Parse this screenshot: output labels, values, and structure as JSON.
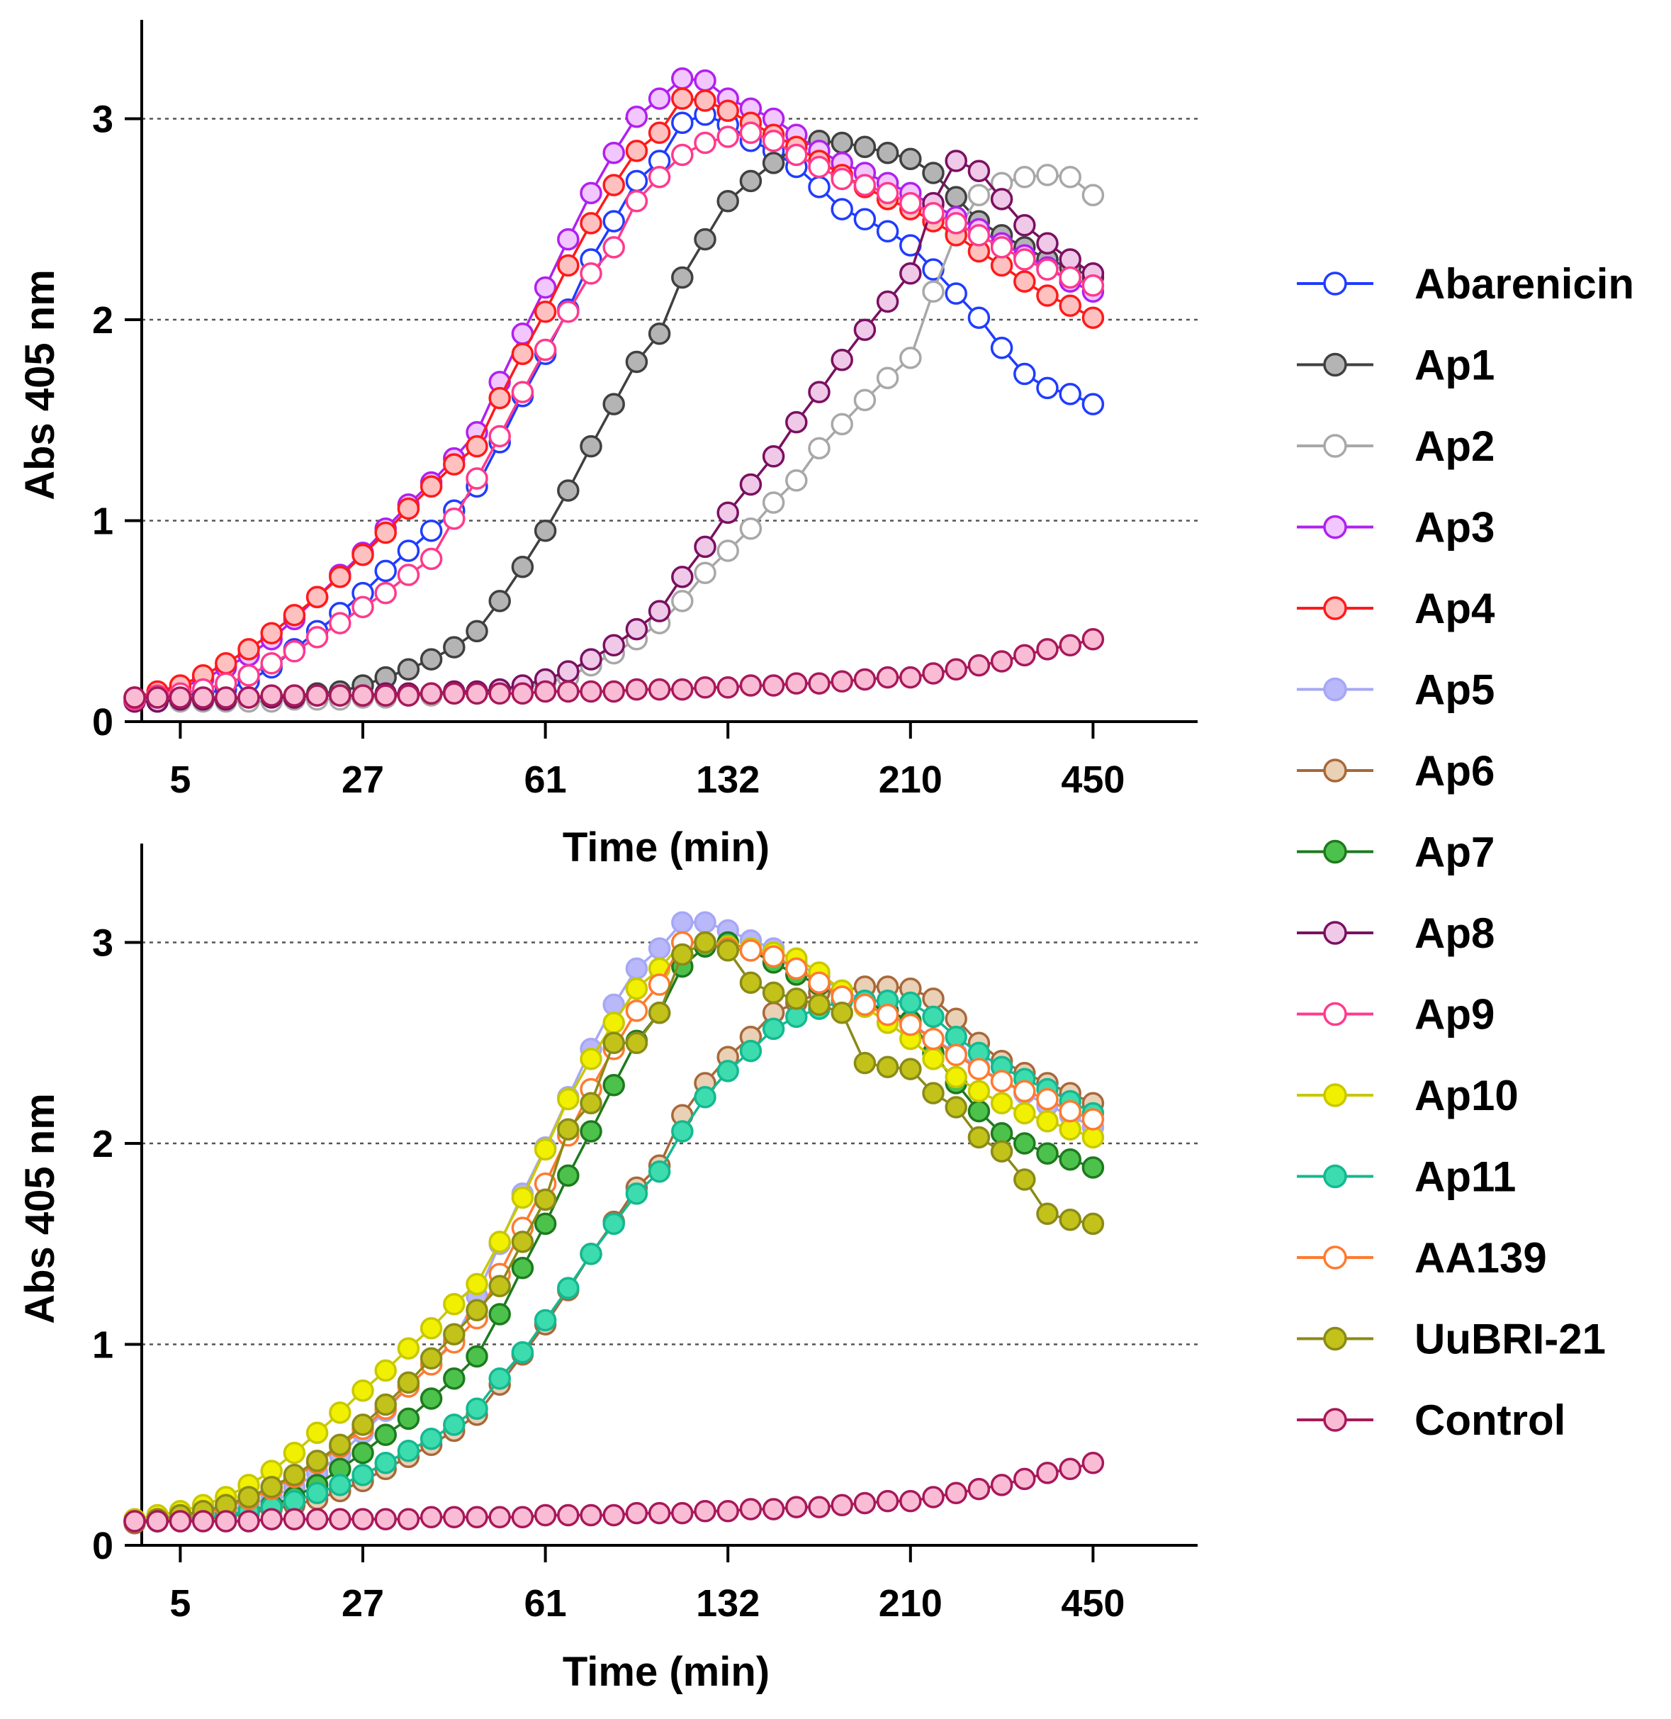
{
  "chart_data": [
    {
      "type": "line",
      "panel": "top",
      "xlabel": "Time (min)",
      "ylabel": "Abs 405 nm",
      "ylim": [
        0,
        3.5
      ],
      "y_ticks": [
        0,
        1,
        2,
        3
      ],
      "grid": "horizontal dotted at y = 1, 2, 3",
      "x_tick_labels": [
        {
          "label": "5",
          "index": 2
        },
        {
          "label": "27",
          "index": 10
        },
        {
          "label": "61",
          "index": 18
        },
        {
          "label": "132",
          "index": 26
        },
        {
          "label": "210",
          "index": 34
        },
        {
          "label": "450",
          "index": 42
        }
      ],
      "n_points": 43,
      "series": [
        {
          "name": "Abarenicin",
          "color": "#1f3cff",
          "fill": "#ffffff",
          "values": [
            0.11,
            0.12,
            0.13,
            0.14,
            0.16,
            0.2,
            0.27,
            0.36,
            0.45,
            0.54,
            0.64,
            0.75,
            0.85,
            0.95,
            1.05,
            1.17,
            1.39,
            1.62,
            1.83,
            2.05,
            2.3,
            2.49,
            2.69,
            2.79,
            2.98,
            3.02,
            2.97,
            2.89,
            2.84,
            2.76,
            2.66,
            2.55,
            2.5,
            2.44,
            2.37,
            2.25,
            2.13,
            2.01,
            1.86,
            1.73,
            1.66,
            1.63,
            1.58
          ]
        },
        {
          "name": "Ap1",
          "color": "#404040",
          "fill": "#b4b4b4",
          "values": [
            0.1,
            0.1,
            0.11,
            0.11,
            0.11,
            0.12,
            0.12,
            0.13,
            0.14,
            0.15,
            0.18,
            0.22,
            0.26,
            0.31,
            0.37,
            0.45,
            0.6,
            0.77,
            0.95,
            1.15,
            1.37,
            1.58,
            1.79,
            1.93,
            2.21,
            2.4,
            2.59,
            2.69,
            2.78,
            2.86,
            2.89,
            2.88,
            2.86,
            2.83,
            2.8,
            2.73,
            2.61,
            2.49,
            2.42,
            2.36,
            2.3,
            2.26,
            2.21
          ]
        },
        {
          "name": "Ap2",
          "color": "#a8a8a8",
          "fill": "#ffffff",
          "values": [
            0.1,
            0.1,
            0.1,
            0.1,
            0.1,
            0.1,
            0.1,
            0.11,
            0.11,
            0.11,
            0.12,
            0.12,
            0.13,
            0.13,
            0.14,
            0.14,
            0.15,
            0.17,
            0.19,
            0.22,
            0.28,
            0.34,
            0.41,
            0.49,
            0.6,
            0.74,
            0.85,
            0.96,
            1.09,
            1.2,
            1.36,
            1.48,
            1.6,
            1.71,
            1.81,
            2.14,
            2.43,
            2.62,
            2.68,
            2.71,
            2.72,
            2.71,
            2.62
          ]
        },
        {
          "name": "Ap3",
          "color": "#b020f0",
          "fill": "#f2c6ff",
          "values": [
            0.12,
            0.14,
            0.17,
            0.21,
            0.27,
            0.33,
            0.41,
            0.51,
            0.62,
            0.73,
            0.84,
            0.96,
            1.08,
            1.19,
            1.31,
            1.44,
            1.69,
            1.93,
            2.16,
            2.4,
            2.63,
            2.83,
            3.01,
            3.1,
            3.2,
            3.19,
            3.1,
            3.05,
            3.0,
            2.92,
            2.84,
            2.78,
            2.73,
            2.68,
            2.63,
            2.57,
            2.51,
            2.45,
            2.38,
            2.32,
            2.26,
            2.19,
            2.14
          ]
        },
        {
          "name": "Ap4",
          "color": "#ff1a1a",
          "fill": "#ffc0c0",
          "values": [
            0.12,
            0.15,
            0.18,
            0.23,
            0.29,
            0.36,
            0.44,
            0.53,
            0.62,
            0.72,
            0.83,
            0.94,
            1.06,
            1.17,
            1.28,
            1.37,
            1.61,
            1.83,
            2.04,
            2.27,
            2.48,
            2.67,
            2.84,
            2.93,
            3.1,
            3.09,
            3.04,
            2.98,
            2.92,
            2.86,
            2.79,
            2.72,
            2.66,
            2.6,
            2.55,
            2.49,
            2.42,
            2.34,
            2.27,
            2.19,
            2.12,
            2.07,
            2.01
          ]
        },
        {
          "name": "Ap8",
          "color": "#7a1060",
          "fill": "#f0c8e8",
          "values": [
            0.1,
            0.1,
            0.11,
            0.11,
            0.11,
            0.12,
            0.12,
            0.12,
            0.13,
            0.13,
            0.13,
            0.14,
            0.14,
            0.14,
            0.15,
            0.15,
            0.16,
            0.18,
            0.21,
            0.25,
            0.31,
            0.38,
            0.46,
            0.55,
            0.72,
            0.87,
            1.04,
            1.18,
            1.32,
            1.49,
            1.64,
            1.8,
            1.95,
            2.09,
            2.23,
            2.58,
            2.79,
            2.74,
            2.6,
            2.47,
            2.38,
            2.3,
            2.23
          ]
        },
        {
          "name": "Ap9",
          "color": "#ff3a8c",
          "fill": "#ffffff",
          "values": [
            0.11,
            0.13,
            0.14,
            0.16,
            0.19,
            0.23,
            0.29,
            0.35,
            0.42,
            0.49,
            0.57,
            0.64,
            0.73,
            0.81,
            1.01,
            1.21,
            1.42,
            1.64,
            1.85,
            2.04,
            2.23,
            2.36,
            2.59,
            2.71,
            2.82,
            2.88,
            2.91,
            2.93,
            2.89,
            2.82,
            2.76,
            2.7,
            2.67,
            2.63,
            2.58,
            2.53,
            2.48,
            2.42,
            2.36,
            2.3,
            2.25,
            2.21,
            2.17
          ]
        },
        {
          "name": "Control",
          "color": "#a8185a",
          "fill": "#f9bcd4",
          "values": [
            0.12,
            0.12,
            0.12,
            0.12,
            0.12,
            0.12,
            0.13,
            0.13,
            0.13,
            0.13,
            0.13,
            0.13,
            0.13,
            0.14,
            0.14,
            0.14,
            0.14,
            0.14,
            0.15,
            0.15,
            0.15,
            0.15,
            0.16,
            0.16,
            0.16,
            0.17,
            0.17,
            0.18,
            0.18,
            0.19,
            0.19,
            0.2,
            0.21,
            0.22,
            0.22,
            0.24,
            0.26,
            0.28,
            0.3,
            0.33,
            0.36,
            0.38,
            0.41
          ]
        }
      ]
    },
    {
      "type": "line",
      "panel": "bottom",
      "xlabel": "Time (min)",
      "ylabel": "Abs 405 nm",
      "ylim": [
        0,
        3.5
      ],
      "y_ticks": [
        0,
        1,
        2,
        3
      ],
      "grid": "horizontal dotted at y = 1, 2, 3",
      "x_tick_labels": [
        {
          "label": "5",
          "index": 2
        },
        {
          "label": "27",
          "index": 10
        },
        {
          "label": "61",
          "index": 18
        },
        {
          "label": "132",
          "index": 26
        },
        {
          "label": "210",
          "index": 34
        },
        {
          "label": "450",
          "index": 42
        }
      ],
      "n_points": 43,
      "series": [
        {
          "name": "Ap5",
          "color": "#a7a7f5",
          "fill": "#b8b8fb",
          "values": [
            0.12,
            0.13,
            0.14,
            0.15,
            0.17,
            0.2,
            0.24,
            0.29,
            0.36,
            0.45,
            0.56,
            0.67,
            0.79,
            0.9,
            1.02,
            1.24,
            1.5,
            1.75,
            1.98,
            2.23,
            2.47,
            2.69,
            2.87,
            2.97,
            3.1,
            3.1,
            3.06,
            3.01,
            2.97,
            2.9,
            2.83,
            2.76,
            2.71,
            2.66,
            2.6,
            2.52,
            2.45,
            2.38,
            2.31,
            2.25,
            2.19,
            2.14,
            2.08
          ]
        },
        {
          "name": "Ap6",
          "color": "#a8683a",
          "fill": "#ead0b4",
          "values": [
            0.11,
            0.12,
            0.12,
            0.13,
            0.14,
            0.16,
            0.18,
            0.2,
            0.23,
            0.27,
            0.32,
            0.38,
            0.44,
            0.5,
            0.57,
            0.65,
            0.8,
            0.95,
            1.1,
            1.27,
            1.45,
            1.61,
            1.78,
            1.89,
            2.14,
            2.3,
            2.43,
            2.53,
            2.65,
            2.7,
            2.75,
            2.76,
            2.78,
            2.78,
            2.77,
            2.72,
            2.62,
            2.5,
            2.41,
            2.35,
            2.3,
            2.25,
            2.2
          ]
        },
        {
          "name": "Ap7",
          "color": "#1e7a1e",
          "fill": "#4cc24c",
          "values": [
            0.12,
            0.12,
            0.13,
            0.14,
            0.15,
            0.17,
            0.2,
            0.24,
            0.3,
            0.38,
            0.46,
            0.55,
            0.63,
            0.73,
            0.83,
            0.94,
            1.15,
            1.38,
            1.6,
            1.84,
            2.06,
            2.29,
            2.51,
            2.65,
            2.88,
            2.98,
            3.0,
            2.96,
            2.9,
            2.84,
            2.79,
            2.74,
            2.7,
            2.66,
            2.61,
            2.45,
            2.3,
            2.16,
            2.05,
            2.0,
            1.95,
            1.92,
            1.88
          ]
        },
        {
          "name": "Ap10",
          "color": "#c8c800",
          "fill": "#f0f000",
          "values": [
            0.13,
            0.15,
            0.17,
            0.2,
            0.24,
            0.3,
            0.37,
            0.46,
            0.56,
            0.66,
            0.77,
            0.87,
            0.98,
            1.08,
            1.2,
            1.3,
            1.51,
            1.73,
            1.97,
            2.22,
            2.42,
            2.6,
            2.77,
            2.87,
            3.0,
            3.0,
            2.98,
            2.97,
            2.95,
            2.92,
            2.85,
            2.76,
            2.68,
            2.6,
            2.52,
            2.42,
            2.33,
            2.26,
            2.2,
            2.15,
            2.11,
            2.07,
            2.03
          ]
        },
        {
          "name": "Ap11",
          "color": "#14b890",
          "fill": "#3cdcae",
          "values": [
            0.12,
            0.12,
            0.13,
            0.14,
            0.15,
            0.17,
            0.19,
            0.22,
            0.26,
            0.3,
            0.35,
            0.41,
            0.47,
            0.53,
            0.6,
            0.68,
            0.83,
            0.96,
            1.12,
            1.28,
            1.45,
            1.6,
            1.75,
            1.86,
            2.06,
            2.23,
            2.36,
            2.46,
            2.57,
            2.63,
            2.67,
            2.71,
            2.71,
            2.71,
            2.7,
            2.63,
            2.53,
            2.45,
            2.38,
            2.32,
            2.27,
            2.21,
            2.15
          ]
        },
        {
          "name": "AA139",
          "color": "#ff7a30",
          "fill": "#ffffff",
          "values": [
            0.12,
            0.13,
            0.14,
            0.16,
            0.19,
            0.23,
            0.28,
            0.34,
            0.41,
            0.49,
            0.58,
            0.68,
            0.79,
            0.9,
            1.01,
            1.13,
            1.35,
            1.58,
            1.8,
            2.04,
            2.27,
            2.47,
            2.66,
            2.79,
            3.0,
            3.0,
            2.97,
            2.96,
            2.93,
            2.87,
            2.8,
            2.73,
            2.69,
            2.64,
            2.59,
            2.52,
            2.44,
            2.37,
            2.31,
            2.26,
            2.22,
            2.16,
            2.12
          ]
        },
        {
          "name": "UuBRI-21",
          "color": "#8a8a18",
          "fill": "#c2c21a",
          "values": [
            0.12,
            0.13,
            0.15,
            0.17,
            0.2,
            0.24,
            0.29,
            0.35,
            0.42,
            0.5,
            0.6,
            0.7,
            0.81,
            0.93,
            1.05,
            1.17,
            1.29,
            1.51,
            1.72,
            2.07,
            2.2,
            2.5,
            2.5,
            2.65,
            2.94,
            3.0,
            2.96,
            2.8,
            2.75,
            2.72,
            2.69,
            2.65,
            2.4,
            2.38,
            2.37,
            2.25,
            2.18,
            2.03,
            1.96,
            1.82,
            1.65,
            1.62,
            1.6
          ]
        },
        {
          "name": "Control",
          "color": "#a8185a",
          "fill": "#f9bcd4",
          "values": [
            0.12,
            0.12,
            0.12,
            0.12,
            0.12,
            0.12,
            0.13,
            0.13,
            0.13,
            0.13,
            0.13,
            0.13,
            0.13,
            0.14,
            0.14,
            0.14,
            0.14,
            0.14,
            0.15,
            0.15,
            0.15,
            0.15,
            0.16,
            0.16,
            0.16,
            0.17,
            0.17,
            0.18,
            0.18,
            0.19,
            0.19,
            0.2,
            0.21,
            0.22,
            0.22,
            0.24,
            0.26,
            0.28,
            0.3,
            0.33,
            0.36,
            0.38,
            0.41
          ]
        }
      ]
    }
  ],
  "legend": {
    "placement": "right",
    "items": [
      {
        "name": "Abarenicin",
        "color": "#1f3cff",
        "fill": "#ffffff"
      },
      {
        "name": "Ap1",
        "color": "#404040",
        "fill": "#b4b4b4"
      },
      {
        "name": "Ap2",
        "color": "#a8a8a8",
        "fill": "#ffffff"
      },
      {
        "name": "Ap3",
        "color": "#b020f0",
        "fill": "#f2c6ff"
      },
      {
        "name": "Ap4",
        "color": "#ff1a1a",
        "fill": "#ffc0c0"
      },
      {
        "name": "Ap5",
        "color": "#a7a7f5",
        "fill": "#b8b8fb"
      },
      {
        "name": "Ap6",
        "color": "#a8683a",
        "fill": "#ead0b4"
      },
      {
        "name": "Ap7",
        "color": "#1e7a1e",
        "fill": "#4cc24c"
      },
      {
        "name": "Ap8",
        "color": "#7a1060",
        "fill": "#f0c8e8"
      },
      {
        "name": "Ap9",
        "color": "#ff3a8c",
        "fill": "#ffffff"
      },
      {
        "name": "Ap10",
        "color": "#c8c800",
        "fill": "#f0f000"
      },
      {
        "name": "Ap11",
        "color": "#14b890",
        "fill": "#3cdcae"
      },
      {
        "name": "AA139",
        "color": "#ff7a30",
        "fill": "#ffffff"
      },
      {
        "name": "UuBRI-21",
        "color": "#8a8a18",
        "fill": "#c2c21a"
      },
      {
        "name": "Control",
        "color": "#a8185a",
        "fill": "#f9bcd4"
      }
    ]
  }
}
